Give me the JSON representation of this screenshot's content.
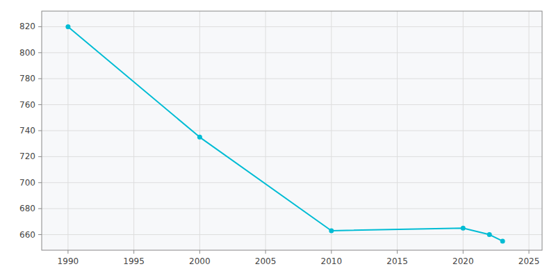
{
  "chart_data": {
    "type": "line",
    "x": [
      1990,
      2000,
      2010,
      2020,
      2022,
      2023
    ],
    "values": [
      820,
      735,
      663,
      665,
      660,
      655
    ],
    "color": "#00bcd4",
    "marker": "circle",
    "xlim": [
      1988,
      2026
    ],
    "ylim": [
      648,
      832
    ],
    "xticks": [
      1990,
      1995,
      2000,
      2005,
      2010,
      2015,
      2020,
      2025
    ],
    "yticks": [
      660,
      680,
      700,
      720,
      740,
      760,
      780,
      800,
      820
    ],
    "grid": true
  }
}
